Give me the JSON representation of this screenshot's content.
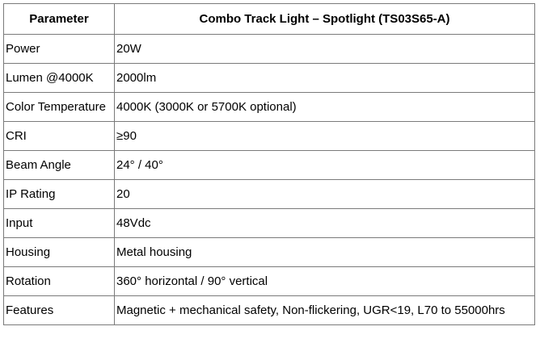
{
  "table": {
    "headers": {
      "parameter": "Parameter",
      "value": "Combo Track Light – Spotlight (TS03S65-A)"
    },
    "rows": [
      {
        "parameter": "Power",
        "value": "20W"
      },
      {
        "parameter": "Lumen @4000K",
        "value": "2000lm"
      },
      {
        "parameter": "Color Temperature",
        "value": "4000K (3000K or 5700K optional)"
      },
      {
        "parameter": "CRI",
        "value": "≥90"
      },
      {
        "parameter": "Beam Angle",
        "value": "24° / 40°"
      },
      {
        "parameter": "IP Rating",
        "value": "20"
      },
      {
        "parameter": "Input",
        "value": "48Vdc"
      },
      {
        "parameter": "Housing",
        "value": "Metal housing"
      },
      {
        "parameter": "Rotation",
        "value": "360° horizontal / 90° vertical"
      },
      {
        "parameter": "Features",
        "value": "Magnetic + mechanical safety, Non-flickering, UGR<19, L70 to 55000hrs"
      }
    ]
  }
}
